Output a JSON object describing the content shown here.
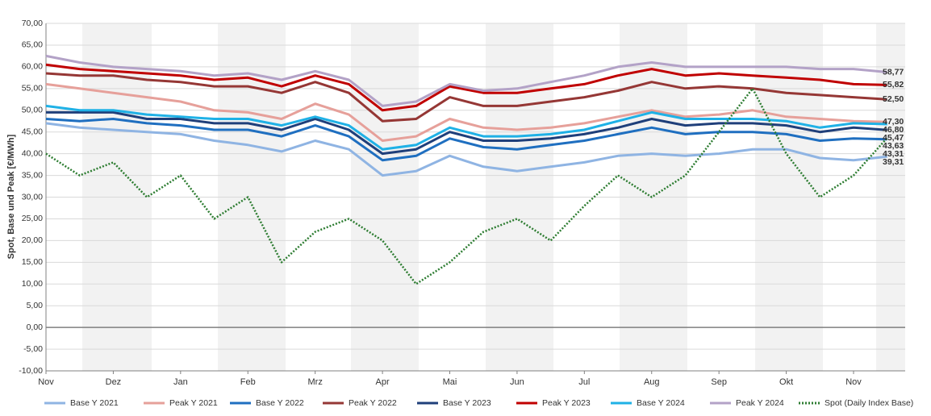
{
  "chart_data": {
    "type": "line",
    "y_label": "Spot, Base und Peak [€/MWh]",
    "categories": [
      "Nov",
      null,
      "Dez",
      null,
      "Jan",
      null,
      "Feb",
      null,
      "Mrz",
      null,
      "Apr",
      null,
      "Mai",
      null,
      "Jun",
      null,
      "Jul",
      null,
      "Aug",
      null,
      "Sep",
      null,
      "Okt",
      null,
      "Nov",
      null
    ],
    "ylim": [
      -10,
      70
    ],
    "yticks": [
      {
        "value": -10,
        "label": "-10,00"
      },
      {
        "value": -5,
        "label": "-5,00"
      },
      {
        "value": 0,
        "label": "0,00"
      },
      {
        "value": 5,
        "label": "5,00"
      },
      {
        "value": 10,
        "label": "10,00"
      },
      {
        "value": 15,
        "label": "15,00"
      },
      {
        "value": 20,
        "label": "20,00"
      },
      {
        "value": 25,
        "label": "25,00"
      },
      {
        "value": 30,
        "label": "30,00"
      },
      {
        "value": 35,
        "label": "35,00"
      },
      {
        "value": 40,
        "label": "40,00"
      },
      {
        "value": 45,
        "label": "45,00"
      },
      {
        "value": 50,
        "label": "50,00"
      },
      {
        "value": 55,
        "label": "55,00"
      },
      {
        "value": 60,
        "label": "60,00"
      },
      {
        "value": 65,
        "label": "65,00"
      },
      {
        "value": 70,
        "label": "70,00"
      }
    ],
    "grid": true,
    "legend": "bottom",
    "series": [
      {
        "name": "Base Y 2021",
        "color": "#8fb4e3",
        "style": "solid",
        "values": [
          47,
          46,
          45.5,
          45,
          44.5,
          43,
          42,
          40.5,
          43,
          41,
          35,
          36,
          39.5,
          37,
          36,
          37,
          38,
          39.5,
          40,
          39.5,
          40,
          41,
          41,
          39,
          38.5,
          39.31
        ],
        "value_labels": [
          null,
          null,
          null,
          null,
          null,
          null,
          null,
          null,
          null,
          null,
          null,
          null,
          null,
          null,
          null,
          null,
          null,
          null,
          null,
          null,
          null,
          null,
          null,
          null,
          null,
          "39,31"
        ]
      },
      {
        "name": "Peak Y 2021",
        "color": "#e6a09a",
        "style": "solid",
        "values": [
          56,
          55,
          54,
          53,
          52,
          50,
          49.5,
          48,
          51.5,
          49,
          43,
          44,
          48,
          46,
          45.5,
          46,
          47,
          48.5,
          50,
          48.5,
          49,
          50,
          48.5,
          48,
          47.5,
          47.3
        ],
        "value_labels": [
          null,
          null,
          null,
          null,
          null,
          null,
          null,
          null,
          null,
          null,
          null,
          null,
          null,
          null,
          null,
          null,
          null,
          null,
          null,
          null,
          null,
          null,
          null,
          null,
          null,
          "47,30"
        ]
      },
      {
        "name": "Base Y 2022",
        "color": "#1f6fc0",
        "style": "solid",
        "values": [
          48,
          47.5,
          48,
          47,
          46.5,
          45.5,
          45.5,
          44,
          46.5,
          44,
          38.5,
          39.5,
          43.5,
          41.5,
          41,
          42,
          43,
          44.5,
          46,
          44.5,
          45,
          45,
          44.5,
          43,
          43.5,
          43.31
        ],
        "value_labels": [
          null,
          null,
          null,
          null,
          null,
          null,
          null,
          null,
          null,
          null,
          null,
          null,
          null,
          null,
          null,
          null,
          null,
          null,
          null,
          null,
          null,
          null,
          null,
          null,
          null,
          "43,31"
        ]
      },
      {
        "name": "Peak Y 2022",
        "color": "#953735",
        "style": "solid",
        "values": [
          58.5,
          58,
          58,
          57,
          56.5,
          55.5,
          55.5,
          54,
          56.5,
          54,
          47.5,
          48,
          53,
          51,
          51,
          52,
          53,
          54.5,
          56.5,
          55,
          55.5,
          55,
          54,
          53.5,
          53,
          52.5
        ],
        "value_labels": [
          null,
          null,
          null,
          null,
          null,
          null,
          null,
          null,
          null,
          null,
          null,
          null,
          null,
          null,
          null,
          null,
          null,
          null,
          null,
          null,
          null,
          null,
          null,
          null,
          null,
          "52,50"
        ]
      },
      {
        "name": "Base Y 2023",
        "color": "#1f3f7a",
        "style": "solid",
        "values": [
          49.5,
          49.5,
          49.5,
          48,
          48,
          47,
          47,
          45.5,
          48,
          45.5,
          40,
          41,
          45,
          43,
          43,
          43.5,
          44.5,
          46,
          48,
          46.5,
          47,
          47,
          46.5,
          45,
          46,
          45.47
        ],
        "value_labels": [
          null,
          null,
          null,
          null,
          null,
          null,
          null,
          null,
          null,
          null,
          null,
          null,
          null,
          null,
          null,
          null,
          null,
          null,
          null,
          null,
          null,
          null,
          null,
          null,
          null,
          "45,47"
        ]
      },
      {
        "name": "Peak Y 2023",
        "color": "#c00000",
        "style": "solid",
        "values": [
          60.5,
          59.5,
          59,
          58.5,
          58,
          57,
          57.5,
          55.5,
          58,
          56,
          50,
          51,
          55.5,
          54,
          54,
          55,
          56,
          58,
          59.5,
          58,
          58.5,
          58,
          57.5,
          57,
          56,
          55.82
        ],
        "value_labels": [
          null,
          null,
          null,
          null,
          null,
          null,
          null,
          null,
          null,
          null,
          null,
          null,
          null,
          null,
          null,
          null,
          null,
          null,
          null,
          null,
          null,
          null,
          null,
          null,
          null,
          "55,82"
        ]
      },
      {
        "name": "Base Y 2024",
        "color": "#1fb1e6",
        "style": "solid",
        "values": [
          51,
          50,
          50,
          49,
          48.5,
          48,
          48,
          46.5,
          48.5,
          46.5,
          41,
          42,
          46,
          44,
          44,
          44.5,
          45.5,
          47.5,
          49.5,
          48,
          48,
          48,
          47.5,
          46,
          47,
          46.8
        ],
        "value_labels": [
          null,
          null,
          null,
          null,
          null,
          null,
          null,
          null,
          null,
          null,
          null,
          null,
          null,
          null,
          null,
          null,
          null,
          null,
          null,
          null,
          null,
          null,
          null,
          null,
          null,
          "46,80"
        ]
      },
      {
        "name": "Peak Y 2024",
        "color": "#b3a2c7",
        "style": "solid",
        "values": [
          62.5,
          61,
          60,
          59.5,
          59,
          58,
          58.5,
          57,
          59,
          57,
          51,
          52,
          56,
          54.5,
          55,
          56.5,
          58,
          60,
          61,
          60,
          60,
          60,
          60,
          59.5,
          59.5,
          58.77
        ],
        "value_labels": [
          null,
          null,
          null,
          null,
          null,
          null,
          null,
          null,
          null,
          null,
          null,
          null,
          null,
          null,
          null,
          null,
          null,
          null,
          null,
          null,
          null,
          null,
          null,
          null,
          null,
          "58,77"
        ]
      },
      {
        "name": "Spot (Daily Index Base)",
        "color": "#2e7d32",
        "style": "dotted",
        "values": [
          40,
          35,
          38,
          30,
          35,
          25,
          30,
          15,
          22,
          25,
          20,
          10,
          15,
          22,
          25,
          20,
          28,
          35,
          30,
          35,
          45,
          55,
          40,
          30,
          35,
          43.63
        ],
        "value_labels": [
          null,
          null,
          null,
          null,
          null,
          null,
          null,
          null,
          null,
          null,
          null,
          null,
          null,
          null,
          null,
          null,
          null,
          null,
          null,
          null,
          null,
          null,
          null,
          null,
          null,
          "43,63"
        ]
      }
    ]
  }
}
